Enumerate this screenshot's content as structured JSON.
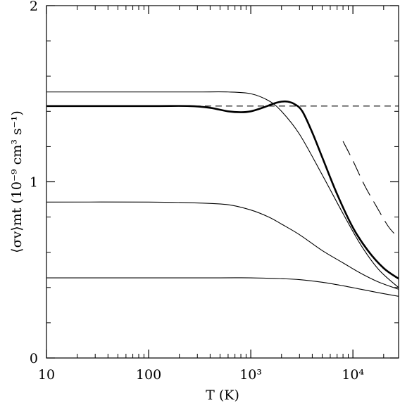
{
  "chart_data": {
    "type": "line",
    "title": "",
    "xlabel": "T (K)",
    "ylabel": "⟨σv⟩mt  (10⁻⁹ cm³ s⁻¹)",
    "x_scale": "log",
    "xlim": [
      10,
      28000
    ],
    "ylim": [
      0,
      2
    ],
    "x_ticks": [
      {
        "value": 10,
        "label": "10"
      },
      {
        "value": 100,
        "label": "100"
      },
      {
        "value": 1000,
        "label": "10³"
      },
      {
        "value": 10000,
        "label": "10⁴"
      }
    ],
    "y_ticks": [
      {
        "value": 0,
        "label": "0"
      },
      {
        "value": 1,
        "label": "1"
      },
      {
        "value": 2,
        "label": "2"
      }
    ],
    "grid": false,
    "legend": "none",
    "series": [
      {
        "style": "thin",
        "x": [
          10,
          100,
          300,
          600,
          1000,
          1500,
          2000,
          3000,
          5000,
          8000,
          12000,
          18000,
          28000
        ],
        "y": [
          1.51,
          1.51,
          1.51,
          1.51,
          1.5,
          1.46,
          1.4,
          1.27,
          1.04,
          0.82,
          0.64,
          0.5,
          0.4
        ]
      },
      {
        "style": "thick",
        "x": [
          10,
          100,
          250,
          400,
          600,
          800,
          1000,
          1300,
          1700,
          2000,
          2300,
          2700,
          3200,
          4000,
          5000,
          7000,
          10000,
          14000,
          20000,
          28000
        ],
        "y": [
          1.43,
          1.43,
          1.43,
          1.42,
          1.4,
          1.395,
          1.4,
          1.42,
          1.445,
          1.455,
          1.455,
          1.44,
          1.4,
          1.28,
          1.14,
          0.93,
          0.74,
          0.61,
          0.51,
          0.45
        ]
      },
      {
        "style": "short-dashed",
        "x": [
          280,
          28000
        ],
        "y": [
          1.43,
          1.43
        ]
      },
      {
        "style": "long-dashed",
        "x": [
          8000,
          10000,
          13000,
          17000,
          22000,
          26000
        ],
        "y": [
          1.23,
          1.12,
          0.98,
          0.86,
          0.75,
          0.7
        ]
      },
      {
        "style": "thin",
        "x": [
          10,
          100,
          300,
          600,
          1000,
          1500,
          2000,
          3000,
          5000,
          8000,
          12000,
          18000,
          28000
        ],
        "y": [
          0.885,
          0.885,
          0.88,
          0.87,
          0.84,
          0.8,
          0.76,
          0.7,
          0.61,
          0.54,
          0.48,
          0.43,
          0.39
        ]
      },
      {
        "style": "thin",
        "x": [
          10,
          100,
          500,
          1000,
          2000,
          3000,
          5000,
          8000,
          12000,
          18000,
          28000
        ],
        "y": [
          0.455,
          0.455,
          0.455,
          0.455,
          0.45,
          0.445,
          0.43,
          0.41,
          0.39,
          0.37,
          0.35
        ]
      }
    ]
  }
}
